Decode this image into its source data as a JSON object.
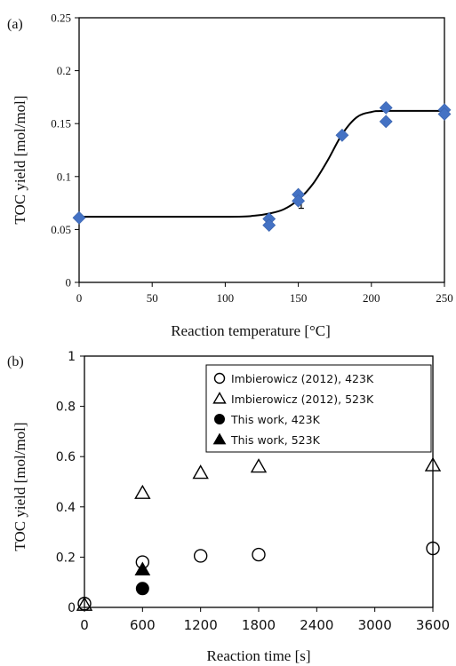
{
  "chart_data": [
    {
      "panel_label": "(a)",
      "type": "scatter",
      "xlabel": "Reaction temperature [°C]",
      "ylabel": "TOC yield [mol/mol]",
      "xlim": [
        0,
        250
      ],
      "ylim": [
        0,
        0.25
      ],
      "x_ticks": [
        "0",
        "50",
        "100",
        "150",
        "200",
        "250"
      ],
      "y_ticks": [
        "0",
        "0.05",
        "0.1",
        "0.15",
        "0.2",
        "0.25"
      ],
      "grid": false,
      "marker": "diamond",
      "marker_color": "#4472C4",
      "points": [
        {
          "x": 0,
          "y": 0.061
        },
        {
          "x": 130,
          "y": 0.06
        },
        {
          "x": 130,
          "y": 0.054
        },
        {
          "x": 150,
          "y": 0.083
        },
        {
          "x": 150,
          "y": 0.077
        },
        {
          "x": 180,
          "y": 0.139
        },
        {
          "x": 210,
          "y": 0.165
        },
        {
          "x": 210,
          "y": 0.152
        },
        {
          "x": 250,
          "y": 0.163
        },
        {
          "x": 250,
          "y": 0.159
        }
      ],
      "fit_curve": {
        "x": [
          0,
          100,
          120,
          130,
          140,
          150,
          160,
          170,
          180,
          190,
          200,
          210,
          250
        ],
        "y": [
          0.062,
          0.062,
          0.063,
          0.065,
          0.069,
          0.078,
          0.093,
          0.115,
          0.14,
          0.156,
          0.161,
          0.162,
          0.162
        ]
      }
    },
    {
      "panel_label": "(b)",
      "type": "scatter",
      "xlabel": "Reaction time [s]",
      "ylabel": "TOC yield [mol/mol]",
      "xlim": [
        0,
        3600
      ],
      "ylim": [
        0,
        1
      ],
      "x_ticks": [
        "0",
        "600",
        "1200",
        "1800",
        "2400",
        "3000",
        "3600"
      ],
      "y_ticks": [
        "0",
        "0.2",
        "0.4",
        "0.6",
        "0.8",
        "1"
      ],
      "grid": false,
      "legend_position": "top-right",
      "series": [
        {
          "name": "Imbierowicz (2012), 423K",
          "marker": "open-circle",
          "x": [
            0,
            600,
            1200,
            1800,
            3600
          ],
          "y": [
            0.015,
            0.18,
            0.205,
            0.21,
            0.235
          ]
        },
        {
          "name": "Imbierowicz (2012), 523K",
          "marker": "open-triangle",
          "x": [
            0,
            600,
            1200,
            1800,
            3600
          ],
          "y": [
            0.01,
            0.455,
            0.535,
            0.56,
            0.565
          ]
        },
        {
          "name": "This work, 423K",
          "marker": "filled-circle",
          "x": [
            600
          ],
          "y": [
            0.075
          ]
        },
        {
          "name": "This work, 523K",
          "marker": "filled-triangle",
          "x": [
            600
          ],
          "y": [
            0.15
          ]
        }
      ]
    }
  ]
}
